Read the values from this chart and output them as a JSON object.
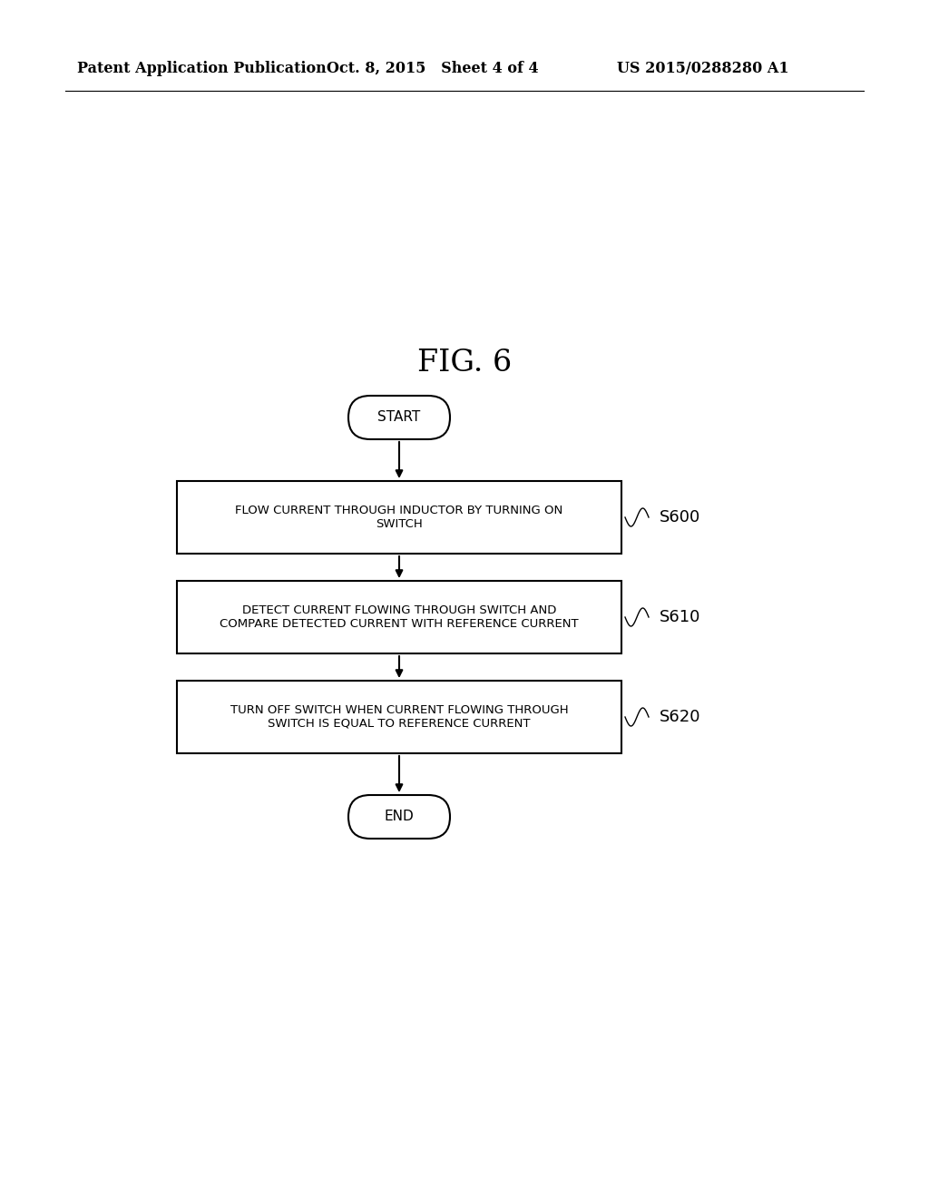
{
  "bg_color": "#ffffff",
  "fig_title": "FIG. 6",
  "header_left": "Patent Application Publication",
  "header_center": "Oct. 8, 2015   Sheet 4 of 4",
  "header_right": "US 2015/0288280 A1",
  "start_label": "START",
  "end_label": "END",
  "steps": [
    {
      "label": "FLOW CURRENT THROUGH INDUCTOR BY TURNING ON\nSWITCH",
      "step_id": "S600"
    },
    {
      "label": "DETECT CURRENT FLOWING THROUGH SWITCH AND\nCOMPARE DETECTED CURRENT WITH REFERENCE CURRENT",
      "step_id": "S610"
    },
    {
      "label": "TURN OFF SWITCH WHEN CURRENT FLOWING THROUGH\nSWITCH IS EQUAL TO REFERENCE CURRENT",
      "step_id": "S620"
    }
  ],
  "box_color": "#ffffff",
  "box_edge_color": "#000000",
  "text_color": "#000000",
  "arrow_color": "#000000",
  "line_width": 1.5,
  "title_fontsize": 24,
  "header_fontsize": 11.5,
  "step_fontsize": 9.5,
  "step_id_fontsize": 13,
  "terminal_fontsize": 11
}
